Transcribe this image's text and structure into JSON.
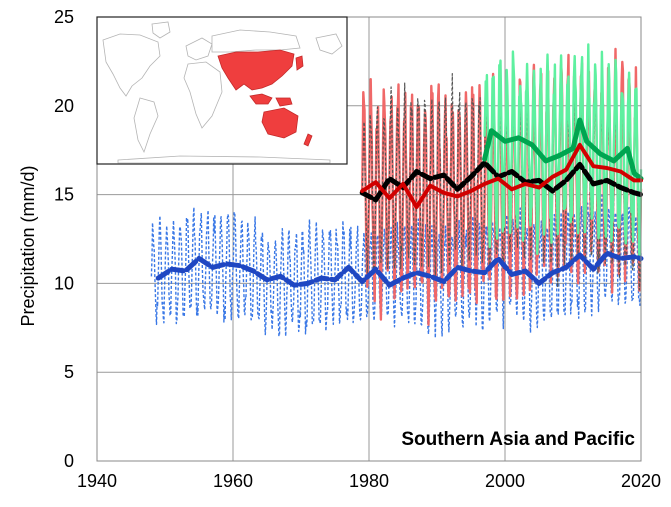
{
  "chart_data": {
    "type": "line",
    "ylabel": "Precipitation (mm/d)",
    "annotation": "Southern Asia and Pacific",
    "xlim": [
      1940,
      2020
    ],
    "ylim": [
      0,
      25
    ],
    "x_ticks": [
      "1940",
      "1960",
      "1980",
      "2000",
      "2020"
    ],
    "y_ticks": [
      "0",
      "5",
      "10",
      "15",
      "20",
      "25"
    ],
    "grid": true,
    "inset": "world map with the Southern Asia and Pacific region highlighted",
    "colors": {
      "blue_monthly": "#3a78e6",
      "blue_smooth": "#1f47c2",
      "red_monthly": "#f06868",
      "red_smooth": "#d10000",
      "green_monthly": "#5ef0a0",
      "green_smooth": "#00a550",
      "black_monthly": "#555555",
      "black_smooth": "#000000",
      "region": "#ef3e3e"
    },
    "series": [
      {
        "style": "blue dashed monthly",
        "x_range": [
          1948,
          2020
        ],
        "x": [
          1950,
          1955,
          1960,
          1965,
          1970,
          1975,
          1980,
          1985,
          1990,
          1995,
          2000,
          2005,
          2010,
          2015,
          2020
        ],
        "y": [
          10.6,
          11.2,
          10.9,
          10.2,
          10.0,
          10.4,
          10.3,
          10.5,
          10.3,
          10.6,
          11.0,
          10.6,
          11.2,
          11.5,
          11.4
        ]
      },
      {
        "style": "blue smooth",
        "x": [
          1949,
          1951,
          1953,
          1955,
          1957,
          1959,
          1961,
          1963,
          1965,
          1967,
          1969,
          1971,
          1973,
          1975,
          1977,
          1979,
          1981,
          1983,
          1985,
          1987,
          1989,
          1991,
          1993,
          1995,
          1997,
          1999,
          2001,
          2003,
          2005,
          2007,
          2009,
          2011,
          2013,
          2015,
          2017,
          2019,
          2020
        ],
        "y": [
          10.3,
          10.8,
          10.7,
          11.4,
          10.9,
          11.1,
          11.0,
          10.7,
          10.2,
          10.4,
          9.9,
          10.0,
          10.3,
          10.2,
          10.9,
          10.1,
          10.8,
          9.9,
          10.3,
          10.6,
          10.4,
          10.1,
          10.9,
          10.7,
          10.6,
          11.4,
          10.5,
          10.7,
          10.0,
          10.6,
          10.9,
          11.6,
          10.8,
          11.7,
          11.4,
          11.5,
          11.4
        ]
      },
      {
        "style": "red monthly",
        "x_range": [
          1979,
          2020
        ],
        "x": [
          1980,
          1985,
          1990,
          1995,
          2000,
          2005,
          2010,
          2015,
          2020
        ],
        "y": [
          15.2,
          15.3,
          14.8,
          15.0,
          15.5,
          15.8,
          16.5,
          16.3,
          15.8
        ]
      },
      {
        "style": "red smooth",
        "x": [
          1979,
          1981,
          1983,
          1985,
          1987,
          1989,
          1991,
          1993,
          1995,
          1997,
          1999,
          2001,
          2003,
          2005,
          2007,
          2009,
          2011,
          2013,
          2015,
          2017,
          2019,
          2020
        ],
        "y": [
          15.2,
          15.7,
          14.8,
          15.6,
          14.3,
          15.5,
          15.1,
          14.9,
          15.2,
          15.6,
          15.9,
          15.3,
          15.6,
          15.4,
          16.0,
          16.4,
          17.8,
          16.6,
          16.5,
          16.3,
          15.8,
          15.8
        ]
      },
      {
        "style": "green monthly",
        "x_range": [
          1997,
          2020
        ],
        "x": [
          1998,
          2002,
          2006,
          2010,
          2014,
          2018,
          2020
        ],
        "y": [
          17.5,
          17.8,
          17.0,
          18.0,
          17.5,
          17.0,
          16.2
        ]
      },
      {
        "style": "green smooth",
        "x": [
          1997,
          1998,
          2000,
          2002,
          2004,
          2006,
          2008,
          2010,
          2011,
          2012,
          2014,
          2016,
          2018,
          2019,
          2020
        ],
        "y": [
          17.0,
          18.6,
          18.0,
          18.2,
          17.8,
          16.9,
          17.2,
          17.6,
          19.2,
          18.0,
          17.3,
          16.9,
          17.6,
          16.2,
          15.9
        ]
      },
      {
        "style": "black dashed monthly",
        "x_range": [
          1979,
          2020
        ],
        "x": [
          1980,
          1985,
          1990,
          1995,
          2000,
          2005,
          2010,
          2015,
          2020
        ],
        "y": [
          15.0,
          15.8,
          15.8,
          15.9,
          16.0,
          15.7,
          16.1,
          15.5,
          15.2
        ]
      },
      {
        "style": "black smooth",
        "x": [
          1979,
          1981,
          1983,
          1985,
          1987,
          1989,
          1991,
          1993,
          1995,
          1997,
          1999,
          2001,
          2003,
          2005,
          2007,
          2009,
          2011,
          2013,
          2015,
          2017,
          2019,
          2020
        ],
        "y": [
          15.1,
          14.7,
          15.9,
          15.4,
          16.3,
          15.9,
          16.1,
          15.3,
          16.0,
          16.8,
          16.0,
          16.3,
          15.7,
          15.8,
          15.2,
          15.8,
          16.7,
          15.6,
          15.8,
          15.4,
          15.1,
          15.0
        ]
      }
    ]
  }
}
